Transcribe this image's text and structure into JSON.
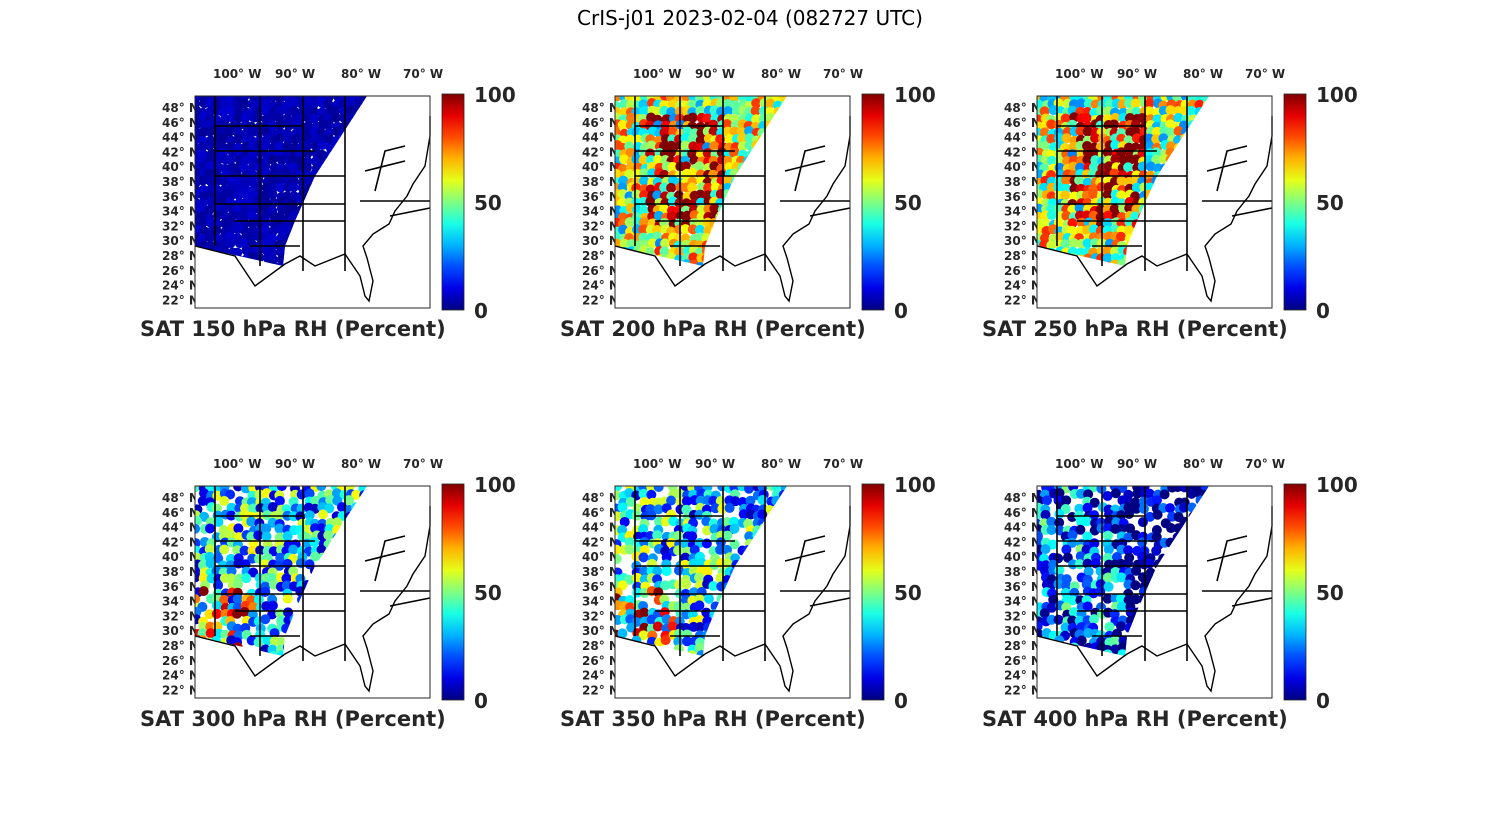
{
  "figure": {
    "title": "CrIS-j01 2023-02-04 (082727 UTC)"
  },
  "axes": {
    "lon_ticks": [
      "100° W",
      "90° W",
      "80° W",
      "70° W"
    ],
    "lat_ticks": [
      "48° N",
      "46° N",
      "44° N",
      "42° N",
      "40° N",
      "38° N",
      "36° N",
      "34° N",
      "32° N",
      "30° N",
      "28° N",
      "26° N",
      "24° N",
      "22° N"
    ]
  },
  "colorbar": {
    "ticks": [
      "100",
      "50",
      "0"
    ],
    "colormap": "jet",
    "range": [
      0,
      100
    ]
  },
  "panels": [
    {
      "caption": "SAT 150 hPa RH (Percent)",
      "pattern": "uniform-dry",
      "typical_value": 5
    },
    {
      "caption": "SAT 200 hPa RH (Percent)",
      "pattern": "moist-plains",
      "typical_value": 60
    },
    {
      "caption": "SAT 250 hPa RH (Percent)",
      "pattern": "moist-plains",
      "typical_value": 55
    },
    {
      "caption": "SAT 300 hPa RH (Percent)",
      "pattern": "mixed-sparse",
      "typical_value": 35
    },
    {
      "caption": "SAT 350 hPa RH (Percent)",
      "pattern": "mixed-sparse",
      "typical_value": 30
    },
    {
      "caption": "SAT 400 hPa RH (Percent)",
      "pattern": "mostly-dry",
      "typical_value": 25
    }
  ]
}
